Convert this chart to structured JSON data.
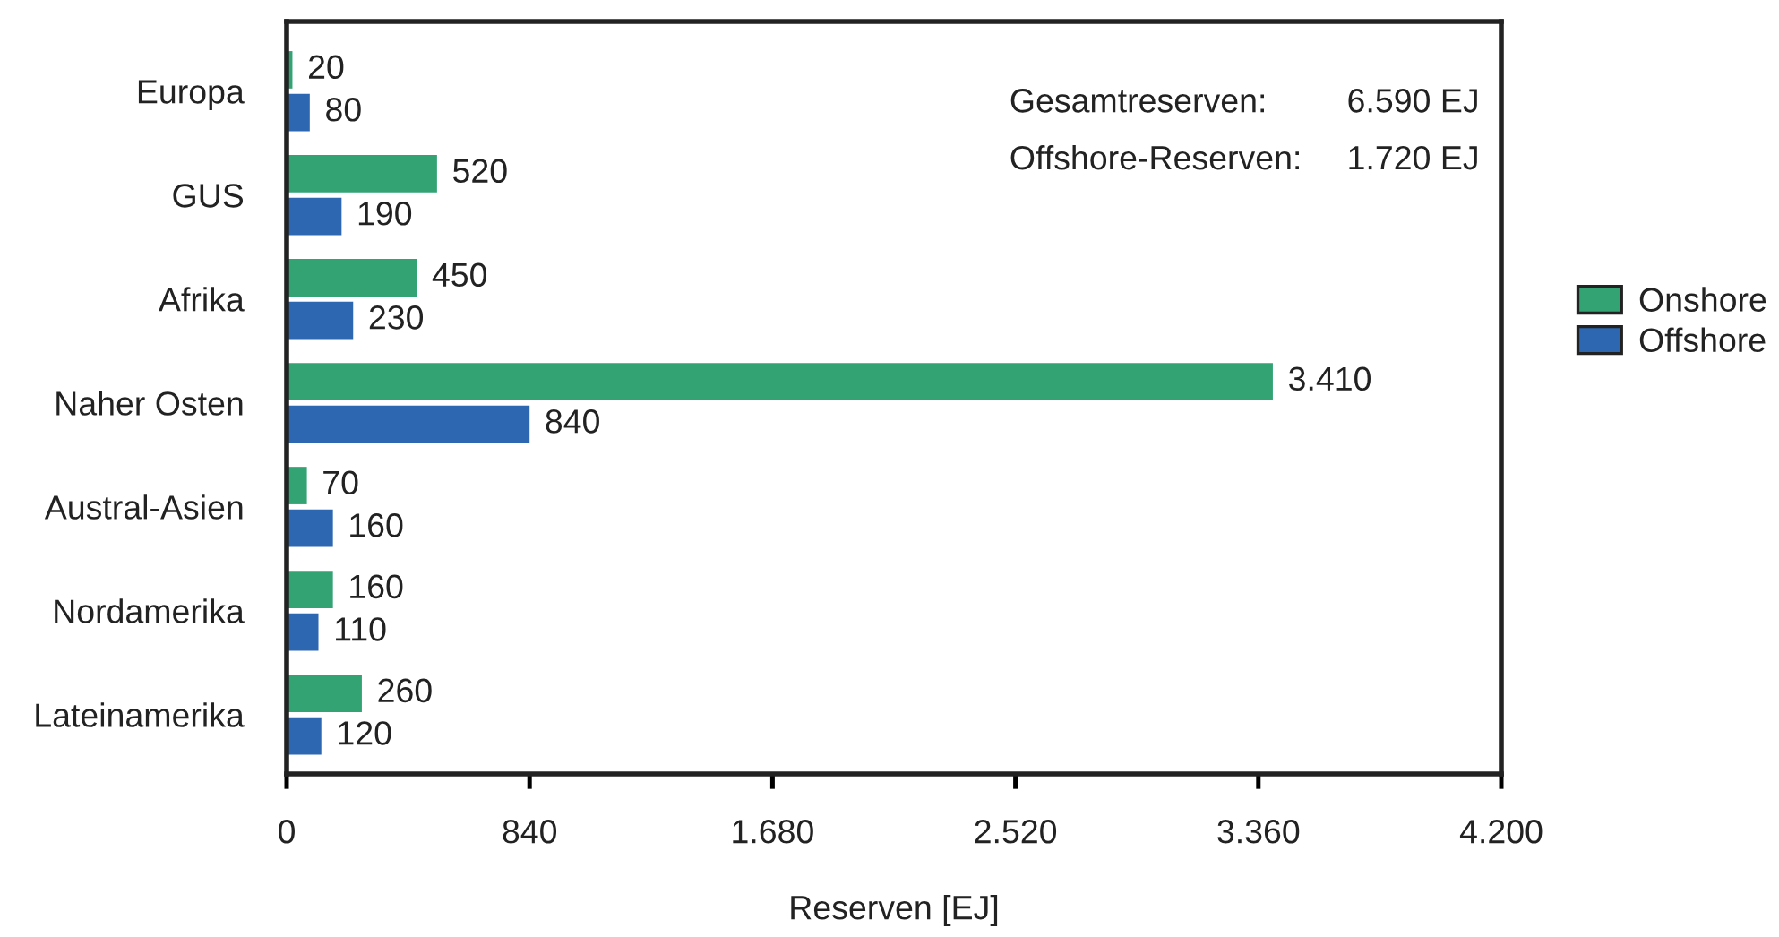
{
  "chart_data": {
    "type": "bar",
    "orientation": "horizontal",
    "categories": [
      "Europa",
      "GUS",
      "Afrika",
      "Naher Osten",
      "Austral-Asien",
      "Nordamerika",
      "Lateinamerika"
    ],
    "series": [
      {
        "name": "Onshore",
        "color": "#33a374",
        "values": [
          20,
          520,
          450,
          3410,
          70,
          160,
          260
        ],
        "value_labels": [
          "20",
          "520",
          "450",
          "3.410",
          "70",
          "160",
          "260"
        ]
      },
      {
        "name": "Offshore",
        "color": "#2d67b2",
        "values": [
          80,
          190,
          230,
          840,
          160,
          110,
          120
        ],
        "value_labels": [
          "80",
          "190",
          "230",
          "840",
          "160",
          "110",
          "120"
        ]
      }
    ],
    "xlim": [
      0,
      4200
    ],
    "xticks": [
      0,
      840,
      {
        "value": 1680,
        "label": "1.680"
      },
      {
        "value": 2520,
        "label": "2.520"
      },
      {
        "value": 3360,
        "label": "3.360"
      },
      {
        "value": 4200,
        "label": "4.200"
      }
    ],
    "xlabel": "Reserven [EJ]",
    "annotations": [
      "Gesamtreserven:",
      "6.590 EJ",
      "Offshore-Reserven:",
      "1.720 EJ"
    ],
    "legend": "right",
    "grid": false
  }
}
